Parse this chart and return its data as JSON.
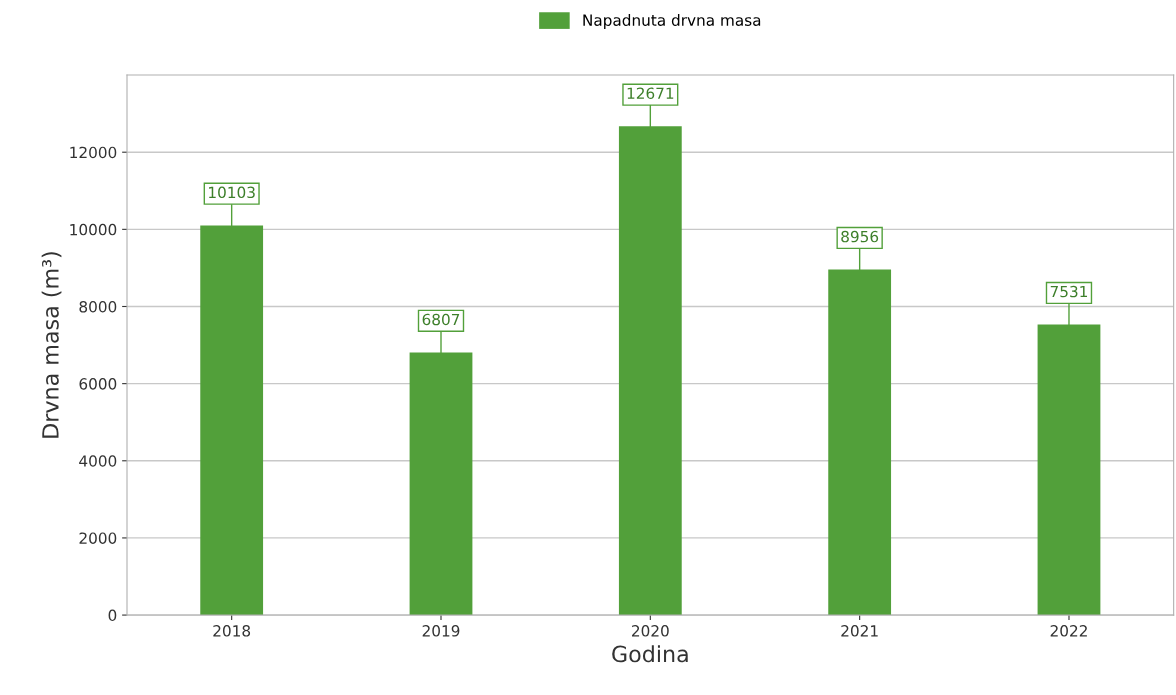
{
  "chart_data": {
    "type": "bar",
    "xlabel": "Godina",
    "ylabel": "Drvna masa (m³)",
    "categories": [
      "2018",
      "2019",
      "2020",
      "2021",
      "2022"
    ],
    "series": [
      {
        "name": "Napadnuta drvna masa",
        "color": "#52a03a",
        "values": [
          10103,
          6807,
          12671,
          8956,
          7531
        ]
      }
    ],
    "ylim": [
      0,
      14000
    ],
    "yticks": [
      0,
      2000,
      4000,
      6000,
      8000,
      10000,
      12000
    ],
    "grid": "y",
    "legend": "top",
    "data_labels": true
  }
}
